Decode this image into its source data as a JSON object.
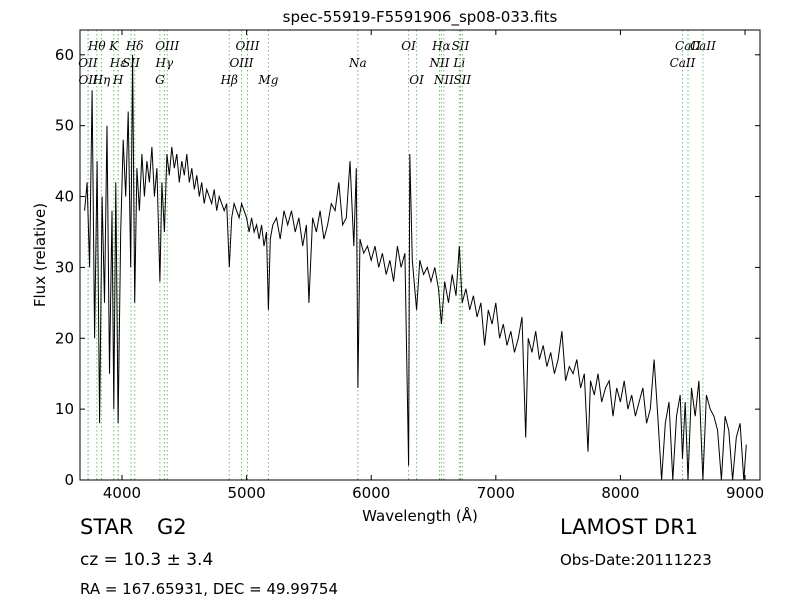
{
  "chart_data": {
    "type": "line",
    "title": "spec-55919-F5591906_sp08-033.fits",
    "x_label": "Wavelength (Å)",
    "y_label": "Flux (relative)",
    "xlim": [
      3663,
      9120
    ],
    "ylim": [
      0,
      63.5
    ],
    "xticks": [
      4000,
      5000,
      6000,
      7000,
      8000,
      9000
    ],
    "yticks": [
      0,
      10,
      20,
      30,
      40,
      50,
      60
    ],
    "color": "#000000",
    "line_color": "#6fbf6f",
    "x": [
      3700,
      3720,
      3740,
      3760,
      3780,
      3800,
      3820,
      3840,
      3860,
      3880,
      3900,
      3920,
      3934,
      3950,
      3969,
      3990,
      4010,
      4030,
      4050,
      4070,
      4085,
      4102,
      4120,
      4140,
      4160,
      4180,
      4200,
      4220,
      4240,
      4260,
      4280,
      4304,
      4320,
      4340,
      4360,
      4380,
      4400,
      4420,
      4440,
      4460,
      4480,
      4500,
      4520,
      4540,
      4560,
      4580,
      4600,
      4620,
      4640,
      4660,
      4680,
      4700,
      4720,
      4740,
      4760,
      4780,
      4800,
      4820,
      4840,
      4861,
      4880,
      4900,
      4920,
      4940,
      4960,
      4980,
      5000,
      5020,
      5040,
      5060,
      5080,
      5100,
      5120,
      5140,
      5160,
      5175,
      5190,
      5210,
      5240,
      5270,
      5300,
      5330,
      5360,
      5390,
      5420,
      5450,
      5480,
      5500,
      5530,
      5560,
      5590,
      5620,
      5650,
      5680,
      5710,
      5740,
      5770,
      5800,
      5830,
      5860,
      5880,
      5893,
      5910,
      5940,
      5970,
      6000,
      6030,
      6060,
      6090,
      6120,
      6150,
      6180,
      6210,
      6240,
      6270,
      6300,
      6310,
      6330,
      6364,
      6390,
      6420,
      6450,
      6480,
      6510,
      6540,
      6563,
      6590,
      6620,
      6650,
      6680,
      6707,
      6730,
      6760,
      6790,
      6820,
      6850,
      6880,
      6910,
      6940,
      6970,
      7000,
      7030,
      7060,
      7090,
      7120,
      7150,
      7180,
      7210,
      7240,
      7260,
      7290,
      7320,
      7350,
      7380,
      7410,
      7440,
      7470,
      7500,
      7530,
      7560,
      7590,
      7620,
      7650,
      7680,
      7710,
      7740,
      7760,
      7790,
      7820,
      7850,
      7880,
      7910,
      7940,
      7970,
      8000,
      8030,
      8060,
      8090,
      8120,
      8150,
      8180,
      8210,
      8240,
      8270,
      8300,
      8330,
      8360,
      8390,
      8420,
      8450,
      8480,
      8498,
      8520,
      8542,
      8570,
      8600,
      8630,
      8662,
      8690,
      8720,
      8750,
      8780,
      8810,
      8840,
      8870,
      8900,
      8930,
      8960,
      8990,
      9010
    ],
    "values": [
      38,
      42,
      30,
      55,
      20,
      45,
      8,
      40,
      25,
      50,
      15,
      38,
      10,
      42,
      8,
      35,
      48,
      40,
      52,
      30,
      60,
      25,
      44,
      38,
      46,
      40,
      45,
      42,
      47,
      40,
      44,
      28,
      42,
      35,
      46,
      43,
      47,
      44,
      46,
      42,
      45,
      43,
      46,
      42,
      44,
      41,
      43,
      40,
      42,
      39,
      41,
      40,
      39,
      41,
      38,
      40,
      39,
      38,
      39,
      30,
      37,
      39,
      38,
      37,
      39,
      38,
      37,
      35,
      37,
      35,
      36,
      34,
      36,
      33,
      35,
      24,
      34,
      36,
      37,
      34,
      38,
      36,
      38,
      35,
      37,
      33,
      36,
      25,
      37,
      35,
      38,
      34,
      36,
      39,
      38,
      42,
      36,
      37,
      45,
      33,
      44,
      13,
      34,
      32,
      33,
      31,
      33,
      30,
      32,
      29,
      31,
      28,
      33,
      30,
      32,
      2,
      46,
      31,
      24,
      31,
      29,
      30,
      28,
      30,
      27,
      22,
      28,
      25,
      29,
      26,
      33,
      25,
      27,
      24,
      26,
      23,
      25,
      19,
      24,
      22,
      25,
      20,
      22,
      19,
      21,
      18,
      20,
      23,
      6,
      20,
      18,
      21,
      17,
      19,
      16,
      18,
      15,
      17,
      21,
      14,
      16,
      15,
      17,
      13,
      15,
      4,
      14,
      12,
      15,
      11,
      13,
      14,
      9,
      13,
      11,
      14,
      10,
      12,
      9,
      11,
      13,
      8,
      10,
      17,
      9,
      0,
      8,
      11,
      0,
      9,
      12,
      3,
      11,
      0,
      13,
      9,
      14,
      0,
      12,
      10,
      9,
      7,
      0,
      9,
      7,
      0,
      6,
      8,
      0,
      5
    ],
    "lines": [
      {
        "name": "Hθ",
        "wavelength": 3798
      },
      {
        "name": "OII",
        "wavelength": 3727
      },
      {
        "name": "OII",
        "wavelength": 3729
      },
      {
        "name": "K",
        "wavelength": 3934
      },
      {
        "name": "Hε",
        "wavelength": 3970
      },
      {
        "name": "Hη",
        "wavelength": 3835
      },
      {
        "name": "Hδ",
        "wavelength": 4102
      },
      {
        "name": "SII",
        "wavelength": 4072
      },
      {
        "name": "H",
        "wavelength": 3969
      },
      {
        "name": "OIII",
        "wavelength": 4363
      },
      {
        "name": "Hγ",
        "wavelength": 4340
      },
      {
        "name": "G",
        "wavelength": 4304
      },
      {
        "name": "OIII",
        "wavelength": 5007
      },
      {
        "name": "OIII",
        "wavelength": 4959
      },
      {
        "name": "Hβ",
        "wavelength": 4861
      },
      {
        "name": "OI",
        "wavelength": 6300
      },
      {
        "name": "Na",
        "wavelength": 5893
      },
      {
        "name": "Mg",
        "wavelength": 5175
      },
      {
        "name": "Hα",
        "wavelength": 6563
      },
      {
        "name": "NII",
        "wavelength": 6548
      },
      {
        "name": "OI",
        "wavelength": 6364
      },
      {
        "name": "SII",
        "wavelength": 6716
      },
      {
        "name": "Li",
        "wavelength": 6707
      },
      {
        "name": "NII",
        "wavelength": 6583
      },
      {
        "name": "CaII",
        "wavelength": 8542
      },
      {
        "name": "CaII",
        "wavelength": 8498
      },
      {
        "name": "SII",
        "wavelength": 6731
      },
      {
        "name": "CaII",
        "wavelength": 8662
      }
    ]
  },
  "info": {
    "class": "STAR",
    "subclass": "G2",
    "cz": "cz = 10.3  ± 3.4",
    "survey": "LAMOST DR1",
    "obs_date": "Obs-Date:20111223",
    "coords": "RA = 167.65931, DEC = 49.99754"
  }
}
